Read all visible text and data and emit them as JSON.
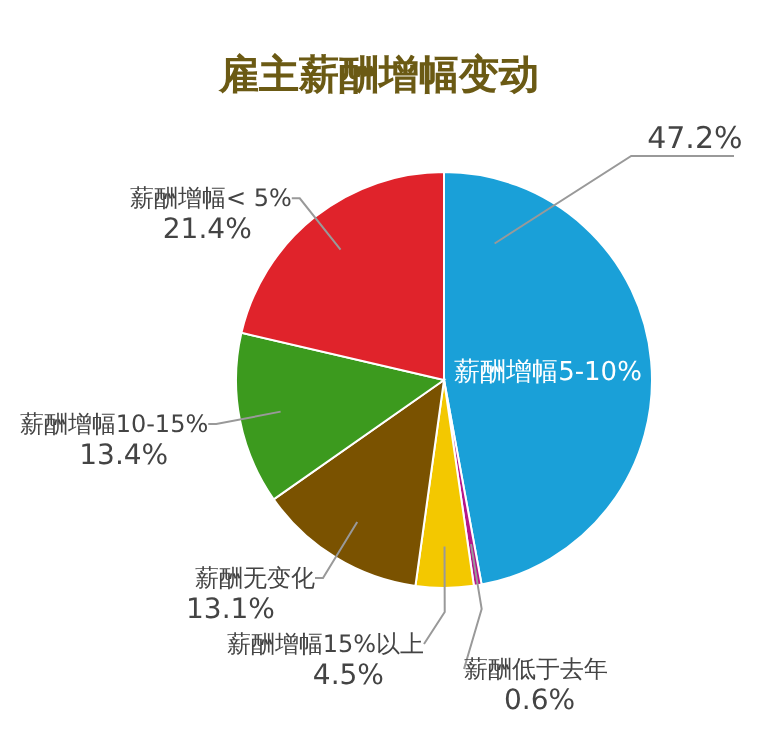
{
  "chart_data": {
    "type": "pie",
    "title": "雇主薪酬增幅变动",
    "categories": [
      "薪酬增幅5-10%",
      "薪酬低于去年",
      "薪酬增幅15%以上",
      "薪酬无变化",
      "薪酬增幅10-15%",
      "薪酬增幅< 5%"
    ],
    "values": [
      47.2,
      0.6,
      4.5,
      13.1,
      13.4,
      21.4
    ],
    "value_labels": [
      "47.2%",
      "0.6%",
      "4.5%",
      "13.1%",
      "13.4%",
      "21.4%"
    ],
    "colors": [
      "#1aa0d8",
      "#b5168a",
      "#f3c800",
      "#7a5200",
      "#3c9a1e",
      "#e0232b"
    ],
    "legend": false
  }
}
